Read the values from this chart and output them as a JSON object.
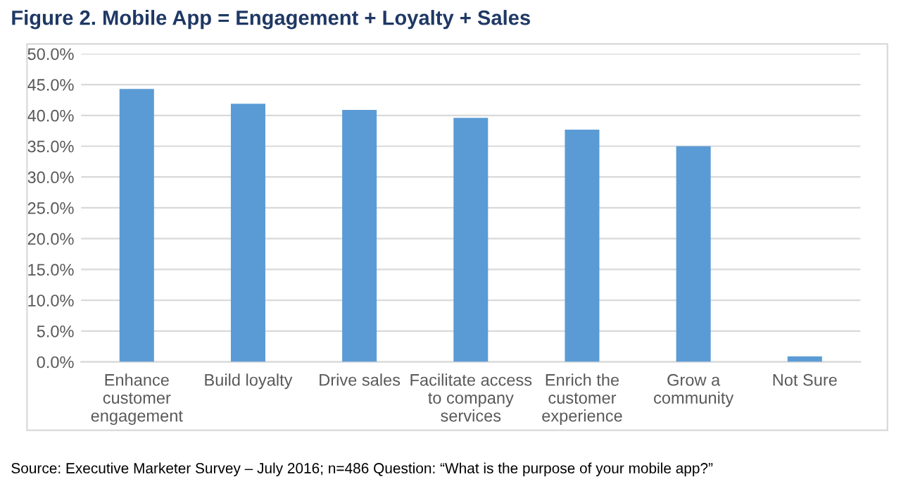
{
  "chart_data": {
    "type": "bar",
    "title": "Figure 2. Mobile App = Engagement + Loyalty + Sales",
    "categories": [
      "Enhance\ncustomer\nengagement",
      "Build loyalty",
      "Drive sales",
      "Facilitate access\nto company\nservices",
      "Enrich the\ncustomer\nexperience",
      "Grow a\ncommunity",
      "Not Sure"
    ],
    "values": [
      44.3,
      41.9,
      40.9,
      39.6,
      37.7,
      35.0,
      0.9
    ],
    "color": "#5b9bd5",
    "ylim": [
      0,
      50
    ],
    "yticks": [
      {
        "value": 0,
        "label": "0.0%"
      },
      {
        "value": 5,
        "label": "5.0%"
      },
      {
        "value": 10,
        "label": "10.0%"
      },
      {
        "value": 15,
        "label": "15.0%"
      },
      {
        "value": 20,
        "label": "20.0%"
      },
      {
        "value": 25,
        "label": "25.0%"
      },
      {
        "value": 30,
        "label": "30.0%"
      },
      {
        "value": 35,
        "label": "35.0%"
      },
      {
        "value": 40,
        "label": "40.0%"
      },
      {
        "value": 45,
        "label": "45.0%"
      },
      {
        "value": 50,
        "label": "50.0%"
      }
    ],
    "grid": "y",
    "annotations": [
      "Source: Executive Marketer Survey – July 2016; n=486 Question: “What is the purpose of your mobile app?”"
    ]
  }
}
